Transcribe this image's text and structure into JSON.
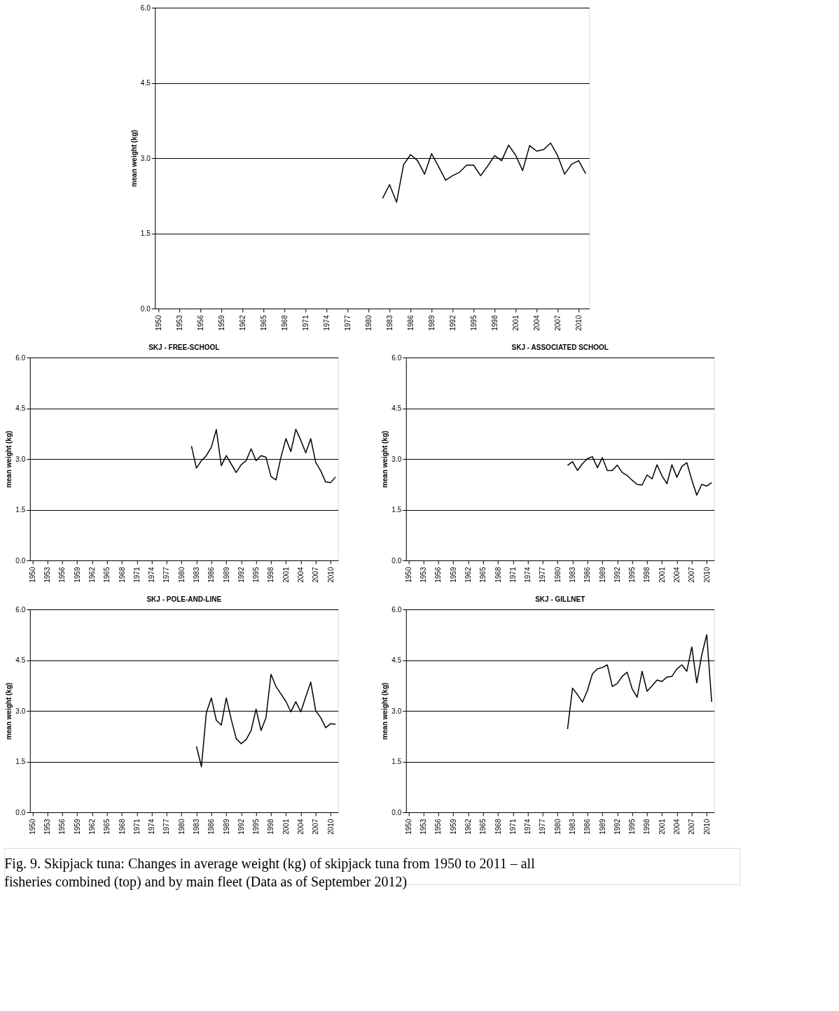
{
  "chart_data": [
    {
      "type": "line",
      "ylabel": "mean weight (kg)",
      "xlim": [
        1949.5,
        2011.5
      ],
      "xticks": [
        1950,
        1953,
        1956,
        1959,
        1962,
        1965,
        1968,
        1971,
        1974,
        1977,
        1980,
        1983,
        1986,
        1989,
        1992,
        1995,
        1998,
        2001,
        2004,
        2007,
        2010
      ],
      "ylim": [
        0,
        6
      ],
      "yticks": [
        {
          "value": 0,
          "label": "0.0"
        },
        {
          "value": 1.5,
          "label": "1.5"
        },
        {
          "value": 3,
          "label": "3.0"
        },
        {
          "value": 4.5,
          "label": "4.5"
        },
        {
          "value": 6,
          "label": "6.0"
        }
      ],
      "grid": "y",
      "line_style": "solid",
      "series": [
        {
          "color": "#000000",
          "x": [
            1982,
            1983,
            1984,
            1985,
            1986,
            1987,
            1988,
            1989,
            1990,
            1991,
            1992,
            1993,
            1994,
            1995,
            1996,
            1997,
            1998,
            1999,
            2000,
            2001,
            2002,
            2003,
            2004,
            2005,
            2006,
            2007,
            2008,
            2009,
            2010,
            2011
          ],
          "values": [
            2.2,
            2.47,
            2.12,
            2.87,
            3.07,
            2.95,
            2.68,
            3.09,
            2.83,
            2.56,
            2.65,
            2.72,
            2.86,
            2.86,
            2.65,
            2.84,
            3.05,
            2.95,
            3.26,
            3.06,
            2.75,
            3.25,
            3.14,
            3.17,
            3.3,
            3.05,
            2.68,
            2.88,
            2.95,
            2.69
          ]
        }
      ],
      "annotations": [
        "Fig. 9. Skipjack tuna: Changes in average weight (kg) of skipjack tuna from 1950 to 2011 – all fisheries combined (top) and by main fleet (Data as of September 2012)"
      ]
    },
    {
      "type": "line",
      "title": "SKJ - FREE-SCHOOL",
      "ylabel": "mean weight (kg)",
      "xlim": [
        1949.5,
        2011.5
      ],
      "xticks": [
        1950,
        1953,
        1956,
        1959,
        1962,
        1965,
        1968,
        1971,
        1974,
        1977,
        1980,
        1983,
        1986,
        1989,
        1992,
        1995,
        1998,
        2001,
        2004,
        2007,
        2010
      ],
      "ylim": [
        0,
        6
      ],
      "yticks": [
        {
          "value": 0,
          "label": "0.0"
        },
        {
          "value": 1.5,
          "label": "1.5"
        },
        {
          "value": 3,
          "label": "3.0"
        },
        {
          "value": 4.5,
          "label": "4.5"
        },
        {
          "value": 6,
          "label": "6.0"
        }
      ],
      "grid": "y",
      "line_style": "solid",
      "series": [
        {
          "color": "#000000",
          "x": [
            1982,
            1983,
            1984,
            1985,
            1986,
            1987,
            1988,
            1989,
            1990,
            1991,
            1992,
            1993,
            1994,
            1995,
            1996,
            1997,
            1998,
            1999,
            2000,
            2001,
            2002,
            2003,
            2004,
            2005,
            2006,
            2007,
            2008,
            2009,
            2010,
            2011
          ],
          "values": [
            3.38,
            2.73,
            2.95,
            3.1,
            3.35,
            3.87,
            2.8,
            3.1,
            2.85,
            2.6,
            2.83,
            2.95,
            3.3,
            2.95,
            3.1,
            3.05,
            2.48,
            2.38,
            3.05,
            3.6,
            3.22,
            3.88,
            3.55,
            3.18,
            3.6,
            2.9,
            2.65,
            2.32,
            2.3,
            2.47
          ]
        }
      ]
    },
    {
      "type": "line",
      "title": "SKJ - ASSOCIATED SCHOOL",
      "ylabel": "mean weight (kg)",
      "xlim": [
        1949.5,
        2011.5
      ],
      "xticks": [
        1950,
        1953,
        1956,
        1959,
        1962,
        1965,
        1968,
        1971,
        1974,
        1977,
        1980,
        1983,
        1986,
        1989,
        1992,
        1995,
        1998,
        2001,
        2004,
        2007,
        2010
      ],
      "ylim": [
        0,
        6
      ],
      "yticks": [
        {
          "value": 0,
          "label": "0.0"
        },
        {
          "value": 1.5,
          "label": "1.5"
        },
        {
          "value": 3,
          "label": "3.0"
        },
        {
          "value": 4.5,
          "label": "4.5"
        },
        {
          "value": 6,
          "label": "6.0"
        }
      ],
      "grid": "y",
      "line_style": "solid",
      "series": [
        {
          "color": "#000000",
          "x": [
            1982,
            1983,
            1984,
            1985,
            1986,
            1987,
            1988,
            1989,
            1990,
            1991,
            1992,
            1993,
            1994,
            1995,
            1996,
            1997,
            1998,
            1999,
            2000,
            2001,
            2002,
            2003,
            2004,
            2005,
            2006,
            2007,
            2008,
            2009,
            2010,
            2011
          ],
          "values": [
            2.81,
            2.92,
            2.66,
            2.86,
            3.01,
            3.07,
            2.74,
            3.04,
            2.66,
            2.66,
            2.82,
            2.6,
            2.51,
            2.37,
            2.25,
            2.23,
            2.53,
            2.41,
            2.83,
            2.5,
            2.27,
            2.83,
            2.46,
            2.78,
            2.89,
            2.38,
            1.93,
            2.25,
            2.2,
            2.3
          ]
        }
      ]
    },
    {
      "type": "line",
      "title": "SKJ - POLE-AND-LINE",
      "ylabel": "mean weight (kg)",
      "xlim": [
        1949.5,
        2011.5
      ],
      "xticks": [
        1950,
        1953,
        1956,
        1959,
        1962,
        1965,
        1968,
        1971,
        1974,
        1977,
        1980,
        1983,
        1986,
        1989,
        1992,
        1995,
        1998,
        2001,
        2004,
        2007,
        2010
      ],
      "ylim": [
        0,
        6
      ],
      "yticks": [
        {
          "value": 0,
          "label": "0.0"
        },
        {
          "value": 1.5,
          "label": "1.5"
        },
        {
          "value": 3,
          "label": "3.0"
        },
        {
          "value": 4.5,
          "label": "4.5"
        },
        {
          "value": 6,
          "label": "6.0"
        }
      ],
      "grid": "y",
      "line_style": "solid",
      "series": [
        {
          "color": "#000000",
          "x": [
            1983,
            1984,
            1985,
            1986,
            1987,
            1988,
            1989,
            1990,
            1991,
            1992,
            1993,
            1994,
            1995,
            1996,
            1997,
            1998,
            1999,
            2000,
            2001,
            2002,
            2003,
            2004,
            2005,
            2006,
            2007,
            2008,
            2009,
            2010,
            2011
          ],
          "values": [
            1.95,
            1.35,
            2.95,
            3.38,
            2.72,
            2.58,
            3.38,
            2.75,
            2.18,
            2.03,
            2.15,
            2.42,
            3.05,
            2.42,
            2.8,
            4.08,
            3.72,
            3.5,
            3.28,
            2.97,
            3.27,
            2.97,
            3.42,
            3.85,
            3.0,
            2.8,
            2.5,
            2.62,
            2.6
          ]
        }
      ]
    },
    {
      "type": "line",
      "title": "SKJ - GILLNET",
      "ylabel": "mean weight (kg)",
      "xlim": [
        1949.5,
        2011.5
      ],
      "xticks": [
        1950,
        1953,
        1956,
        1959,
        1962,
        1965,
        1968,
        1971,
        1974,
        1977,
        1980,
        1983,
        1986,
        1989,
        1992,
        1995,
        1998,
        2001,
        2004,
        2007,
        2010
      ],
      "ylim": [
        0,
        6
      ],
      "yticks": [
        {
          "value": 0,
          "label": "0.0"
        },
        {
          "value": 1.5,
          "label": "1.5"
        },
        {
          "value": 3,
          "label": "3.0"
        },
        {
          "value": 4.5,
          "label": "4.5"
        },
        {
          "value": 6,
          "label": "6.0"
        }
      ],
      "grid": "y",
      "line_style": "solid",
      "series": [
        {
          "color": "#000000",
          "x": [
            1982,
            1983,
            1984,
            1985,
            1986,
            1987,
            1988,
            1989,
            1990,
            1991,
            1992,
            1993,
            1994,
            1995,
            1996,
            1997,
            1998,
            1999,
            2000,
            2001,
            2002,
            2003,
            2004,
            2005,
            2006,
            2007,
            2008,
            2009,
            2010,
            2011
          ],
          "values": [
            2.46,
            3.67,
            3.48,
            3.26,
            3.6,
            4.09,
            4.24,
            4.28,
            4.36,
            3.72,
            3.81,
            4.02,
            4.14,
            3.65,
            3.4,
            4.17,
            3.58,
            3.74,
            3.91,
            3.87,
            4.0,
            4.02,
            4.24,
            4.36,
            4.17,
            4.89,
            3.83,
            4.65,
            5.25,
            3.27
          ]
        }
      ]
    }
  ]
}
